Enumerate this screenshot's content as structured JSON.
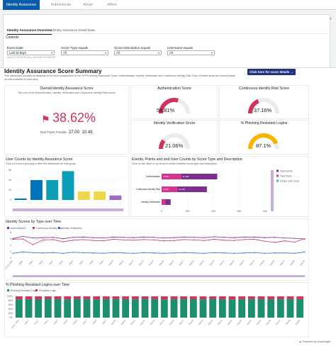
{
  "topnav": {
    "tabs": [
      "Identity Assurance",
      "Authenticate",
      "Adopt",
      "Affirm"
    ],
    "active_index": 0
  },
  "subtabs": {
    "items": [
      "Identity Assurance Overview",
      "Identity Assurance Detail Data"
    ],
    "active_index": 0
  },
  "controls": {
    "heading": "Controls",
    "items": [
      {
        "label": "Event Date",
        "value": "Last 30 days",
        "sub": "2024-07-31 00:00:00 to 2024-08-29 23:59:59"
      },
      {
        "label": "Score Type equals",
        "value": "All",
        "sub": ""
      },
      {
        "label": "Score Description equals",
        "value": "All",
        "sub": ""
      },
      {
        "label": "Username equals",
        "value": "All",
        "sub": ""
      }
    ]
  },
  "summary": {
    "title": "Identity Assurance Score Summary",
    "description": "This dashboard provides an analysis of the three components of the HYPR Identity Assurance Score: Authentication, Identity Verification and Continuous Identity Risk. Each of these areas are scored based on user activities in each area.",
    "cta_label": "Click here for score details →"
  },
  "overall": {
    "title": "Overall Identity Assurance Score",
    "subtitle": "The sum of the Authentication, Identity Verification and Continuous Identity Risk scores",
    "value": "38.62%",
    "percent": 38.62,
    "points_label": "Total Points Possible",
    "points_possible": "27.00",
    "points_earned": "10.43",
    "color": "#d1345b"
  },
  "gauges": [
    {
      "title": "Authentication Score",
      "value": "58.81%",
      "fraction": 0.5881,
      "color": "#d1345b"
    },
    {
      "title": "Continuous Identity Risk Score",
      "value": "37.16%",
      "fraction": 0.3716,
      "color": "#d1345b"
    },
    {
      "title": "Identity Verification Score",
      "value": "21.06%",
      "fraction": 0.2106,
      "color": "#d1345b"
    },
    {
      "title": "% Phishing Resistant Logins",
      "value": "87.1%",
      "fraction": 0.871,
      "color": "#f7b500"
    }
  ],
  "user_counts": {
    "title": "User Counts by Identity Assurance Score",
    "subtitle": "Click on a score grouping to filter the dashboard for that group",
    "chart_data": {
      "type": "bar",
      "values": [
        3,
        40,
        40,
        58,
        17,
        17,
        9
      ],
      "colors": [
        "#0073bb",
        "#0073bb",
        "#0e9fb8",
        "#0e9fb8",
        "#f2d649",
        "#f2d649",
        "#a06bc4"
      ],
      "ylim": [
        0,
        60
      ],
      "yticks": [
        "0",
        "20",
        "40",
        "60"
      ]
    }
  },
  "events": {
    "title": "Events, Points and and User Counts by Score Type and Description",
    "subtitle": "Click on the down or up arrow to switch between score type and description",
    "chart_data": {
      "type": "bar",
      "categories": [
        "Authentication",
        "Continuous Identity Risk",
        "Identity Verification"
      ],
      "series": [
        {
          "name": "Total Events",
          "values": [
            14000,
            11500,
            2000
          ],
          "color": "#7d2f8f"
        },
        {
          "name": "Total Points",
          "values": [
            7500,
            6000,
            1500
          ],
          "color": "#d8348f"
        },
        {
          "name": "Unique User Count",
          "values": [
            2000,
            2000,
            1000
          ],
          "color": "#34b5ea"
        }
      ],
      "bar_labels": [
        [
          "4.40K",
          "11.49K"
        ],
        [
          "4.17K",
          "16.74K"
        ],
        [
          "",
          ""
        ]
      ],
      "xticks": [
        "0",
        "10K",
        "20K",
        "30K",
        "40K"
      ],
      "xlim": [
        0,
        40000
      ]
    }
  },
  "identity_scores": {
    "title": "Identity Scores by Type over Time",
    "chart_data": {
      "type": "line",
      "series": [
        {
          "name": "Authentication",
          "color": "#7d2f8f"
        },
        {
          "name": "Continuous Identity Risk",
          "color": "#d1345b"
        },
        {
          "name": "Identity Verification",
          "color": "#2f6fb5"
        }
      ],
      "yticks": [
        "0",
        "2",
        "4",
        "6",
        "8"
      ],
      "ylim": [
        0,
        8
      ],
      "x": [
        "Jul 31, 2024",
        "Aug 1",
        "Aug 2",
        "Aug 3",
        "Aug 4",
        "Aug 5",
        "Aug 6",
        "Aug 7",
        "Aug 8",
        "Aug 9",
        "Aug 10",
        "Aug 11",
        "Aug 12",
        "Aug 13",
        "Aug 14",
        "Aug 15",
        "Aug 16",
        "Aug 17",
        "Aug 18",
        "Aug 19",
        "Aug 20",
        "Aug 21",
        "Aug 22",
        "Aug 23",
        "Aug 24",
        "Aug 25",
        "Aug 26",
        "Aug 27",
        "Aug 28",
        "Aug 29"
      ],
      "values": [
        [
          6.1,
          6.8,
          6.3,
          6.4,
          6.5,
          6.1,
          6.5,
          6.6,
          6.4,
          6.3,
          6.6,
          6.5,
          6.4,
          6.6,
          6.5,
          6.3,
          6.4,
          6.6,
          6.5,
          6.4,
          6.7,
          6.5,
          6.4,
          6.6,
          6.6,
          6.4,
          6.5,
          6.3,
          6.2,
          6.0
        ],
        [
          5.9,
          6.0,
          4.2,
          5.7,
          5.8,
          5.1,
          5.6,
          5.8,
          5.5,
          5.4,
          5.9,
          5.7,
          5.6,
          5.8,
          5.7,
          5.4,
          5.5,
          5.8,
          5.7,
          5.5,
          5.9,
          5.6,
          5.5,
          5.8,
          5.9,
          5.3,
          4.9,
          5.4,
          5.0,
          6.1
        ],
        [
          1.5,
          1.9,
          1.7,
          1.6,
          1.7,
          1.5,
          1.8,
          1.7,
          1.6,
          1.5,
          1.7,
          1.6,
          1.5,
          1.7,
          1.6,
          1.5,
          1.6,
          1.7,
          1.6,
          1.5,
          1.7,
          1.6,
          1.5,
          1.6,
          1.7,
          1.5,
          1.6,
          1.6,
          1.5,
          1.9
        ]
      ]
    }
  },
  "phishing": {
    "title": "% Phishing Resistant Logins over Time",
    "chart_data": {
      "type": "bar",
      "series": [
        {
          "name": "Phishing Resistant Login",
          "color": "#1d8e6e"
        },
        {
          "name": "Phishable Login",
          "color": "#d1345b"
        }
      ],
      "yticks": [
        "0%",
        "20%",
        "40%",
        "60%",
        "80%",
        "100%"
      ],
      "ylim": [
        0,
        100
      ],
      "resistant_percent": [
        86,
        87,
        85,
        88,
        87,
        86,
        88,
        87,
        86,
        87,
        88,
        87,
        86,
        88,
        87,
        86,
        87,
        88,
        87,
        86,
        88,
        87,
        86,
        87,
        88,
        87,
        86,
        87,
        88,
        87
      ]
    }
  },
  "footer": "Powered by QuickSight"
}
